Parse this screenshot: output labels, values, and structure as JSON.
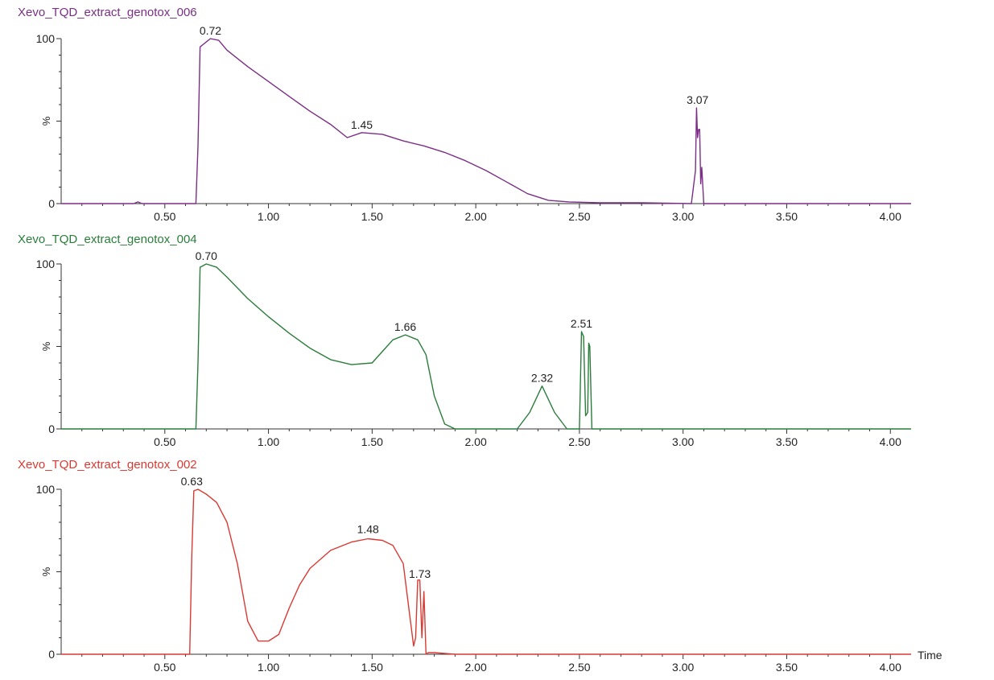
{
  "chart_data": [
    {
      "type": "line",
      "title": "Xevo_TQD_extract_genotox_006",
      "color": "#7b2f86",
      "ylabel": "%",
      "xlabel": "",
      "xlim": [
        0.0,
        4.1
      ],
      "ylim": [
        0,
        100
      ],
      "xticks": [
        "0.50",
        "1.00",
        "1.50",
        "2.00",
        "2.50",
        "3.00",
        "3.50",
        "4.00"
      ],
      "yticks": [
        "0",
        "100"
      ],
      "peak_labels": [
        {
          "x": 0.72,
          "y": 100,
          "label": "0.72"
        },
        {
          "x": 1.45,
          "y": 43,
          "label": "1.45"
        },
        {
          "x": 3.07,
          "y": 58,
          "label": "3.07"
        }
      ],
      "series": [
        {
          "x": [
            0.0,
            0.35,
            0.37,
            0.39,
            0.65,
            0.66,
            0.67,
            0.72,
            0.76,
            0.8,
            0.9,
            1.0,
            1.1,
            1.2,
            1.3,
            1.38,
            1.45,
            1.55,
            1.65,
            1.75,
            1.85,
            1.95,
            2.05,
            2.15,
            2.25,
            2.35,
            2.45,
            2.6,
            2.8,
            3.04,
            3.06,
            3.065,
            3.07,
            3.075,
            3.08,
            3.085,
            3.09,
            3.1,
            3.12,
            4.1
          ],
          "y": [
            0,
            0,
            1,
            0,
            0,
            35,
            95,
            100,
            99,
            93,
            83,
            74,
            65,
            56,
            48,
            40,
            43,
            42,
            38,
            35,
            31,
            26,
            20,
            13,
            6,
            2,
            1,
            0.5,
            0.5,
            0,
            20,
            58,
            40,
            45,
            45,
            12,
            22,
            0,
            0,
            0
          ]
        }
      ]
    },
    {
      "type": "line",
      "title": "Xevo_TQD_extract_genotox_004",
      "color": "#2b7d3c",
      "ylabel": "%",
      "xlabel": "",
      "xlim": [
        0.0,
        4.1
      ],
      "ylim": [
        0,
        100
      ],
      "xticks": [
        "0.50",
        "1.00",
        "1.50",
        "2.00",
        "2.50",
        "3.00",
        "3.50",
        "4.00"
      ],
      "yticks": [
        "0",
        "100"
      ],
      "peak_labels": [
        {
          "x": 0.7,
          "y": 100,
          "label": "0.70"
        },
        {
          "x": 1.66,
          "y": 57,
          "label": "1.66"
        },
        {
          "x": 2.32,
          "y": 26,
          "label": "2.32"
        },
        {
          "x": 2.51,
          "y": 59,
          "label": "2.51"
        }
      ],
      "series": [
        {
          "x": [
            0.0,
            0.65,
            0.66,
            0.67,
            0.7,
            0.75,
            0.8,
            0.9,
            1.0,
            1.1,
            1.2,
            1.3,
            1.4,
            1.5,
            1.55,
            1.6,
            1.66,
            1.72,
            1.76,
            1.8,
            1.85,
            1.9,
            2.2,
            2.26,
            2.32,
            2.38,
            2.44,
            2.5,
            2.51,
            2.52,
            2.53,
            2.54,
            2.545,
            2.55,
            2.56,
            2.58,
            4.1
          ],
          "y": [
            0,
            0,
            40,
            98,
            100,
            98,
            92,
            79,
            68,
            58,
            49,
            42,
            39,
            40,
            47,
            54,
            57,
            54,
            45,
            20,
            3,
            0,
            0,
            10,
            26,
            10,
            0,
            0,
            59,
            56,
            8,
            10,
            52,
            50,
            0,
            0,
            0
          ]
        }
      ]
    },
    {
      "type": "line",
      "title": "Xevo_TQD_extract_genotox_002",
      "color": "#d83a33",
      "ylabel": "%",
      "xlabel": "Time",
      "xlim": [
        0.0,
        4.1
      ],
      "ylim": [
        0,
        100
      ],
      "xticks": [
        "0.50",
        "1.00",
        "1.50",
        "2.00",
        "2.50",
        "3.00",
        "3.50",
        "4.00"
      ],
      "yticks": [
        "0",
        "100"
      ],
      "peak_labels": [
        {
          "x": 0.63,
          "y": 100,
          "label": "0.63"
        },
        {
          "x": 1.48,
          "y": 71,
          "label": "1.48"
        },
        {
          "x": 1.73,
          "y": 44,
          "label": "1.73"
        }
      ],
      "series": [
        {
          "x": [
            0.0,
            0.62,
            0.63,
            0.64,
            0.66,
            0.7,
            0.75,
            0.8,
            0.85,
            0.9,
            0.95,
            1.0,
            1.05,
            1.1,
            1.15,
            1.2,
            1.3,
            1.4,
            1.48,
            1.55,
            1.6,
            1.65,
            1.68,
            1.7,
            1.71,
            1.72,
            1.73,
            1.74,
            1.75,
            1.76,
            1.77,
            1.8,
            1.9,
            4.1
          ],
          "y": [
            0,
            0,
            60,
            99,
            100,
            97,
            92,
            80,
            55,
            20,
            8,
            8,
            12,
            28,
            42,
            52,
            63,
            68,
            70,
            69,
            66,
            55,
            25,
            5,
            10,
            45,
            45,
            10,
            38,
            0,
            1,
            1,
            0,
            0
          ]
        }
      ]
    }
  ]
}
